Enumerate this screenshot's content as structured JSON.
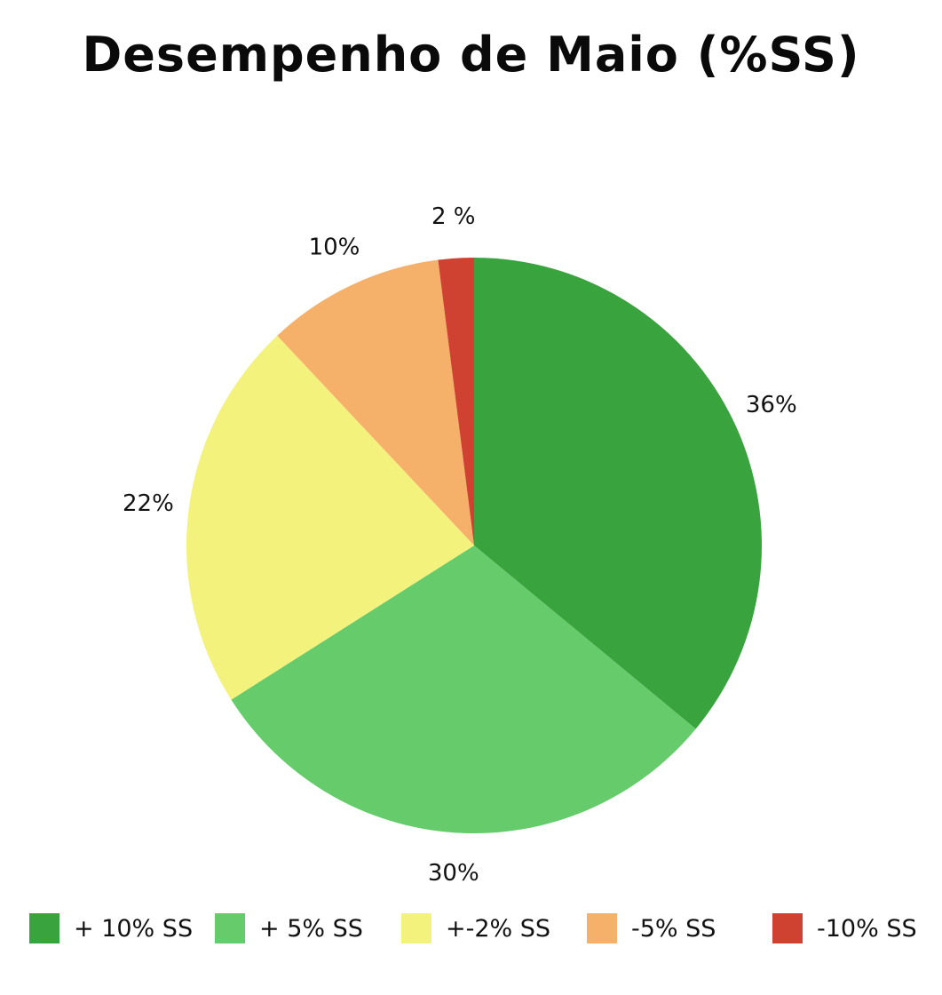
{
  "chart_data": {
    "type": "pie",
    "title": "Desempenho de Maio (%SS)",
    "categories": [
      "+ 10% SS",
      "+ 5% SS",
      "+-2% SS",
      "-5% SS",
      "-10% SS"
    ],
    "values": [
      36,
      30,
      22,
      10,
      2
    ],
    "labels": [
      "36%",
      "30%",
      "22%",
      "10%",
      "2 %"
    ],
    "colors": [
      "#39a33d",
      "#66cc6b",
      "#f3f27d",
      "#f5b06a",
      "#cf4130"
    ],
    "start_angle": "top",
    "direction": "clockwise",
    "legend_position": "bottom"
  }
}
